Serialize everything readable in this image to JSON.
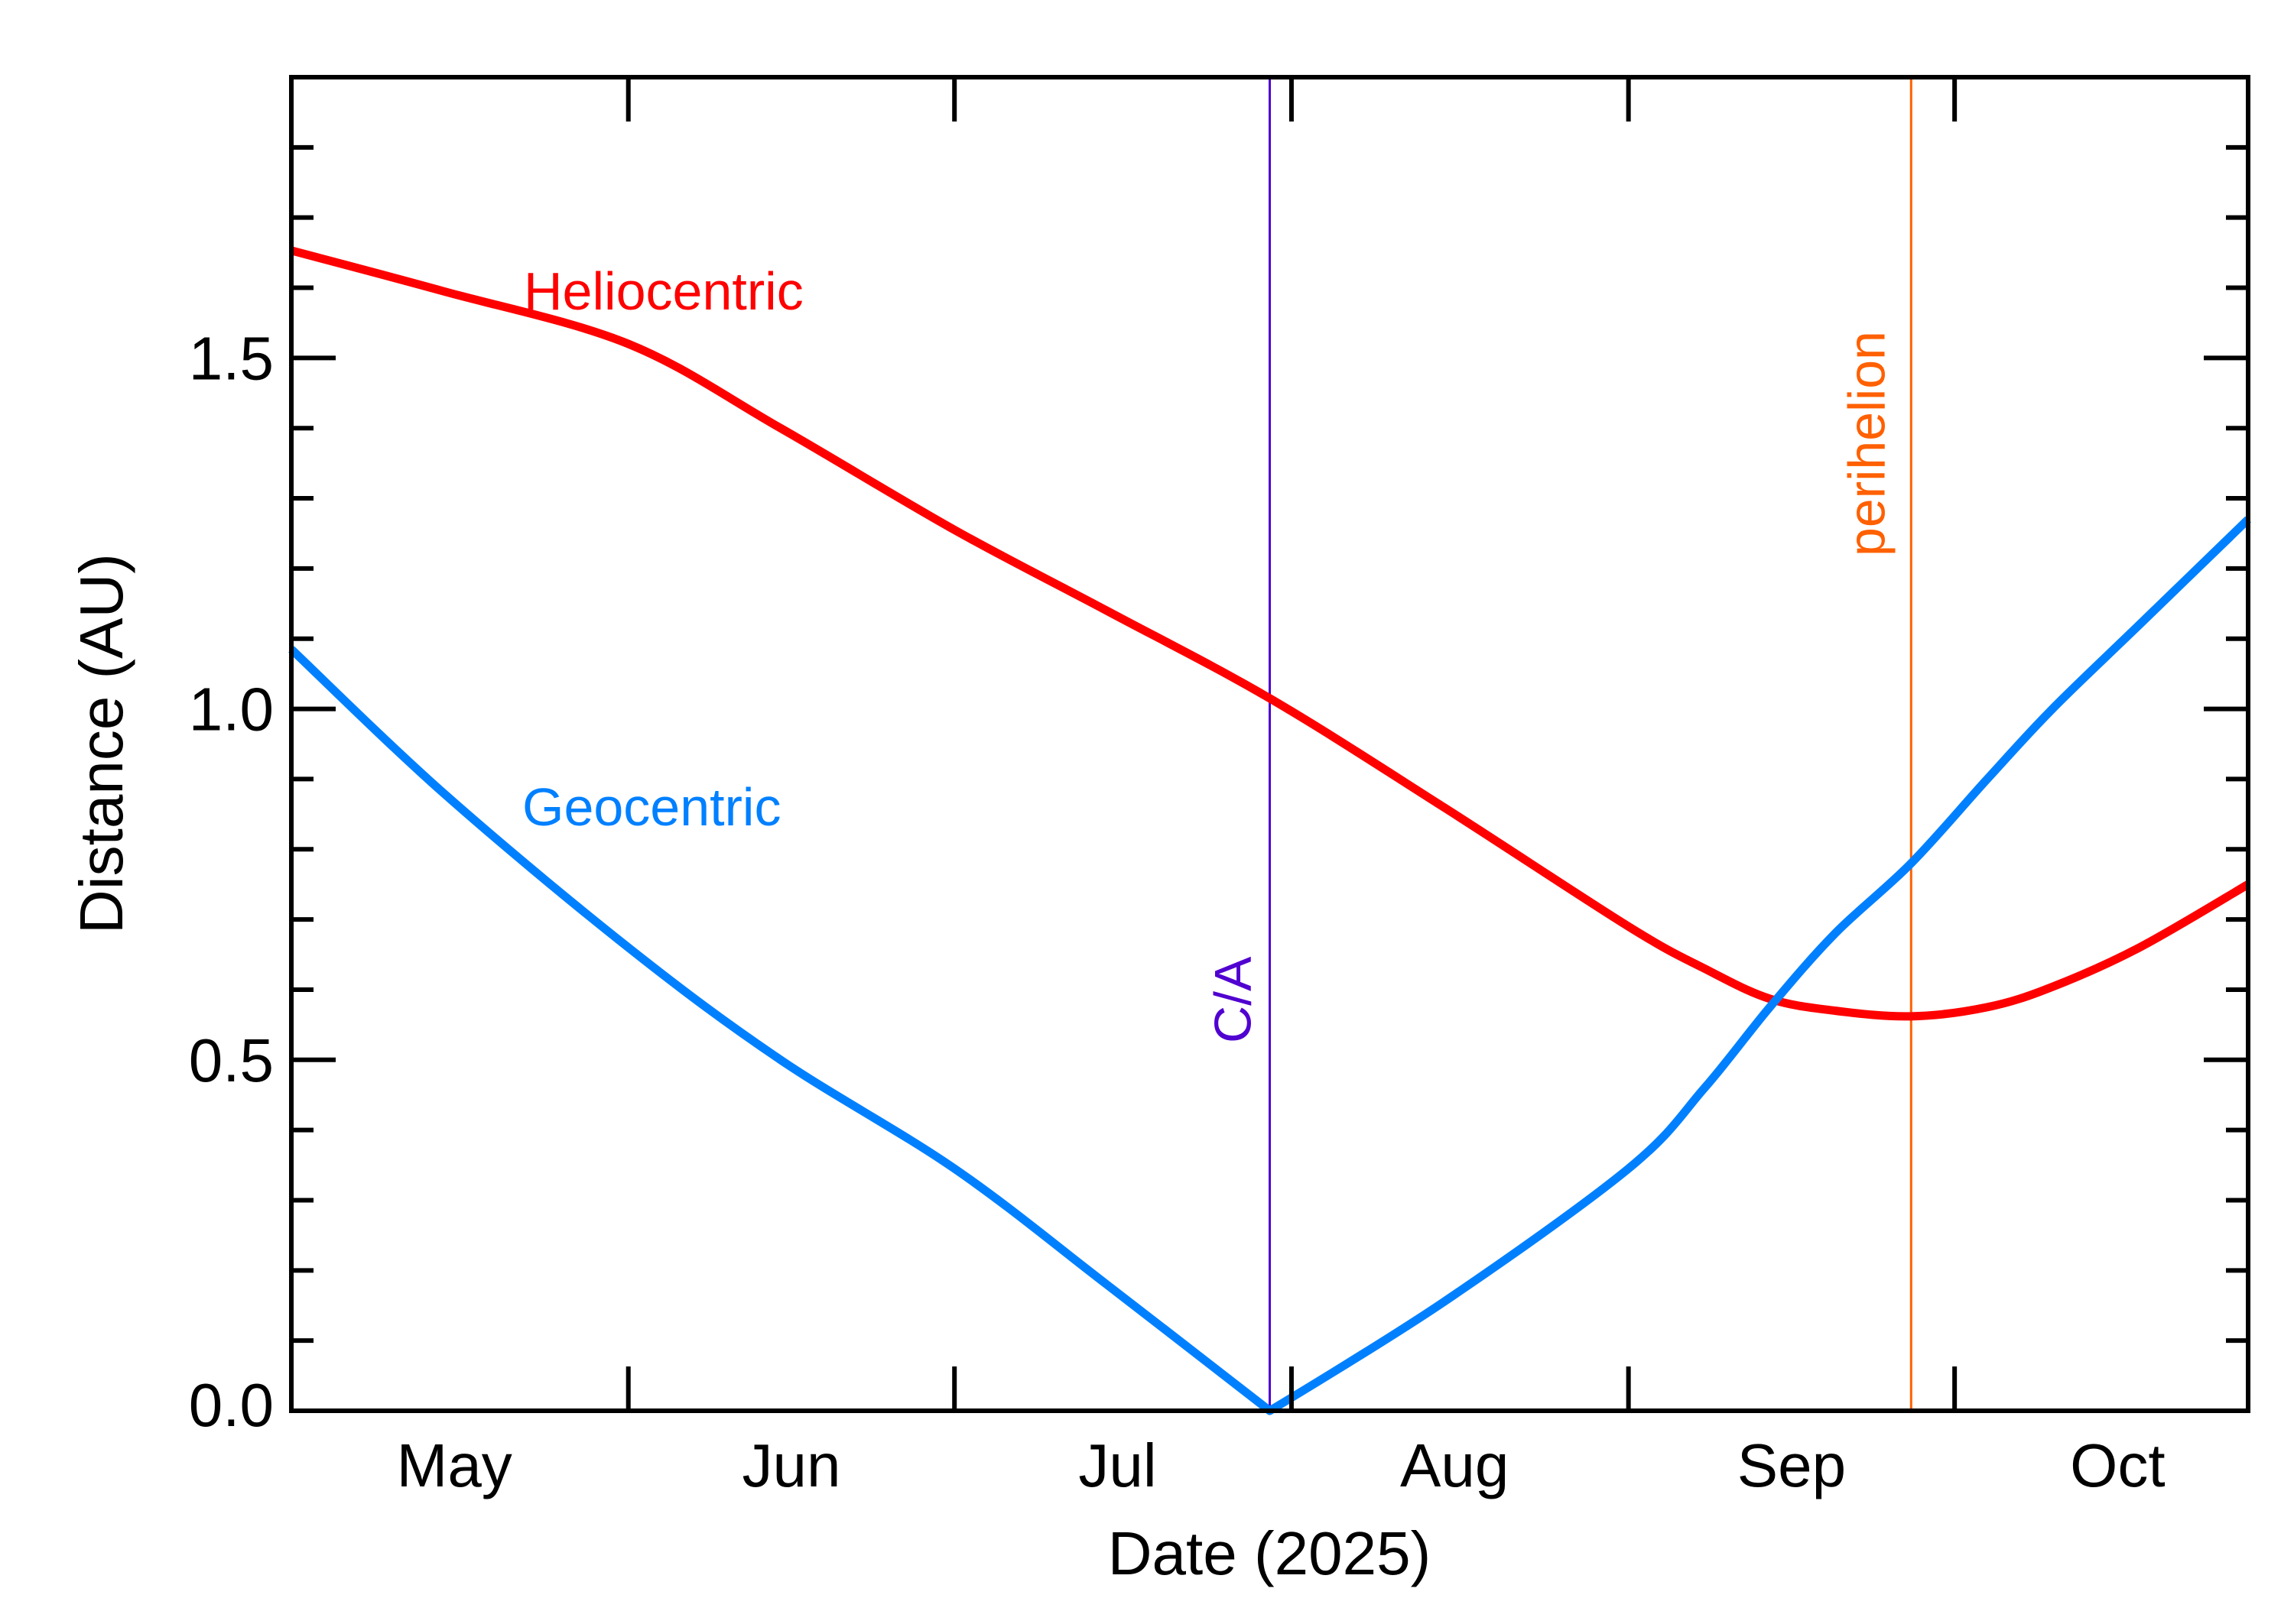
{
  "chart_data": {
    "type": "line",
    "xlabel": "Date (2025)",
    "ylabel": "Distance (AU)",
    "xlim": [
      "2025-05-01",
      "2025-10-28"
    ],
    "ylim": [
      0,
      1.9
    ],
    "x_ticks": [
      "2025-06-01",
      "2025-07-01",
      "2025-08-01",
      "2025-09-01",
      "2025-10-01"
    ],
    "x_tick_labels": [
      {
        "label": "May",
        "date": "2025-05-16"
      },
      {
        "label": "Jun",
        "date": "2025-06-16"
      },
      {
        "label": "Jul",
        "date": "2025-07-16"
      },
      {
        "label": "Aug",
        "date": "2025-08-16"
      },
      {
        "label": "Sep",
        "date": "2025-09-16"
      },
      {
        "label": "Oct",
        "date": "2025-10-16"
      }
    ],
    "y_ticks": [
      0.0,
      0.5,
      1.0,
      1.5
    ],
    "y_tick_labels": [
      "0.0",
      "0.5",
      "1.0",
      "1.5"
    ],
    "y_minor_step": 0.1,
    "grid": false,
    "series": [
      {
        "name": "Heliocentric",
        "color": "#ff0000",
        "x": [
          "2025-05-01",
          "2025-05-15",
          "2025-06-01",
          "2025-06-15",
          "2025-07-01",
          "2025-07-15",
          "2025-07-30",
          "2025-08-15",
          "2025-09-01",
          "2025-09-08",
          "2025-09-14",
          "2025-09-20",
          "2025-09-27",
          "2025-10-04",
          "2025-10-10",
          "2025-10-18",
          "2025-10-28"
        ],
        "y": [
          1.653,
          1.595,
          1.52,
          1.4,
          1.255,
          1.14,
          1.015,
          0.86,
          0.69,
          0.63,
          0.587,
          0.57,
          0.562,
          0.575,
          0.604,
          0.66,
          0.75
        ]
      },
      {
        "name": "Geocentric",
        "color": "#0080ff",
        "x": [
          "2025-05-01",
          "2025-05-15",
          "2025-06-01",
          "2025-06-15",
          "2025-07-01",
          "2025-07-15",
          "2025-07-30",
          "2025-08-15",
          "2025-09-01",
          "2025-09-08",
          "2025-09-14",
          "2025-09-20",
          "2025-09-27",
          "2025-10-04",
          "2025-10-10",
          "2025-10-18",
          "2025-10-28"
        ],
        "y": [
          1.085,
          0.88,
          0.66,
          0.5,
          0.345,
          0.18,
          0.0,
          0.155,
          0.345,
          0.46,
          0.575,
          0.68,
          0.78,
          0.9,
          1.0,
          1.12,
          1.27
        ]
      }
    ],
    "annotations": [
      {
        "label": "C/A",
        "date": "2025-07-30",
        "color": "#5000d0"
      },
      {
        "label": "perihelion",
        "date": "2025-09-27",
        "color": "#ff6000"
      }
    ]
  }
}
